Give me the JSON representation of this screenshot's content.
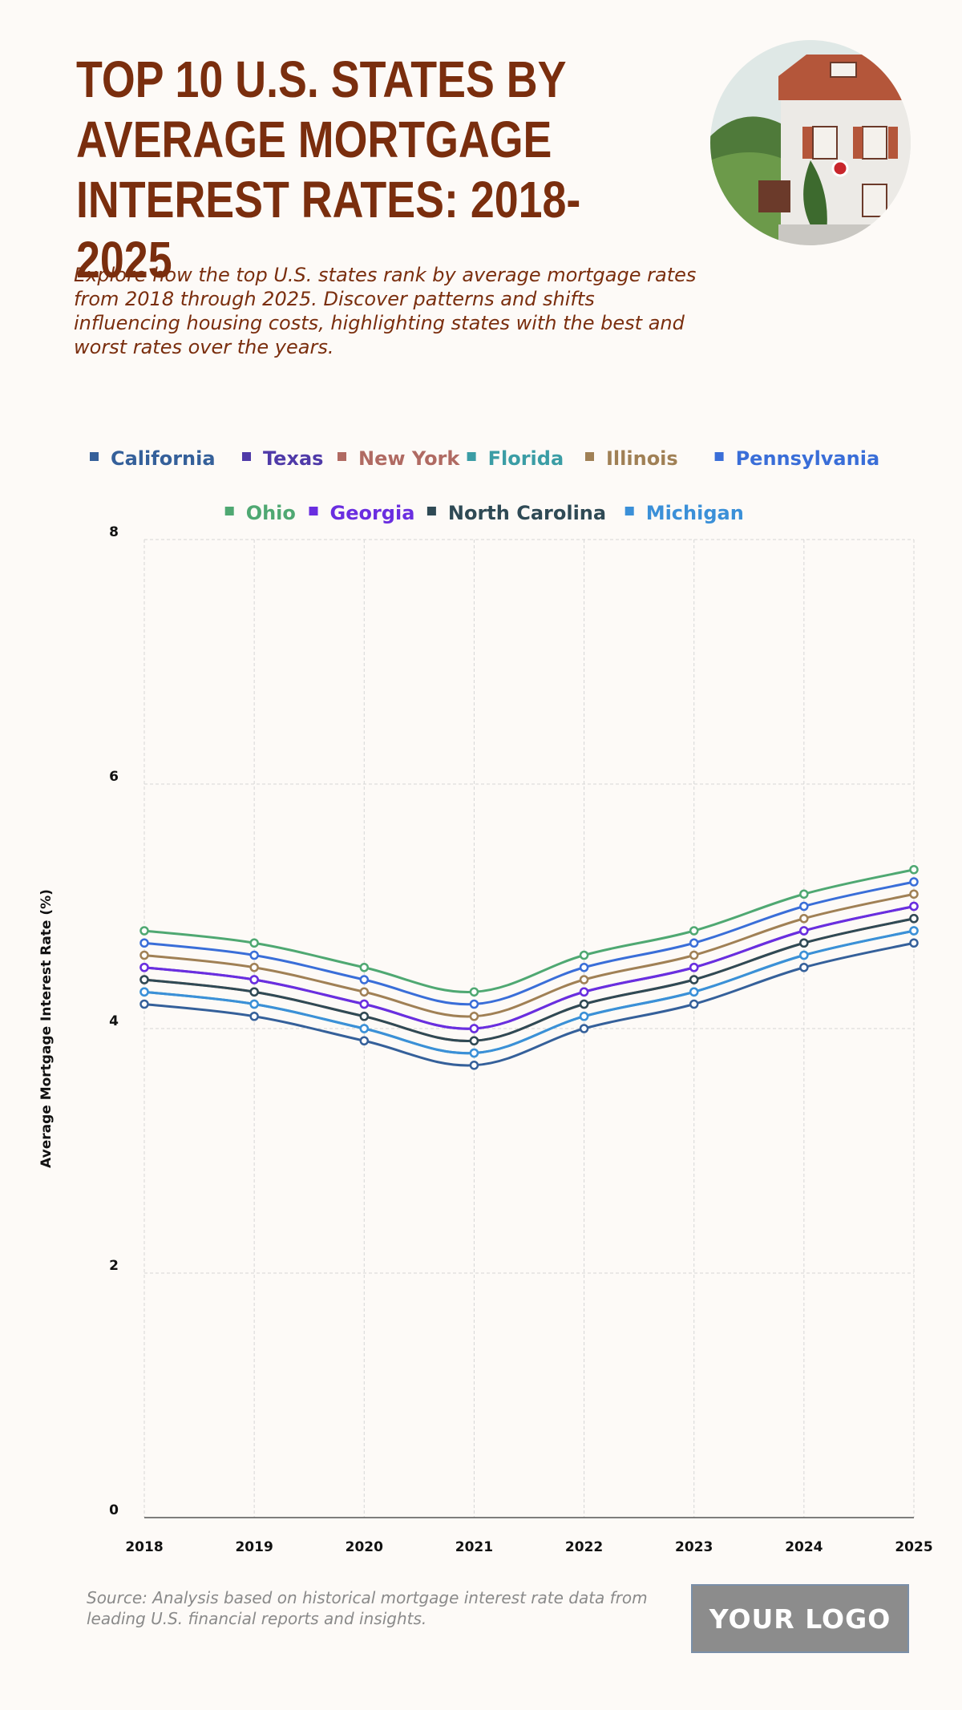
{
  "header": {
    "title": "TOP 10 U.S. STATES BY AVERAGE MORTGAGE INTEREST RATES: 2018-2025",
    "subtitle": "Explore how the top U.S. states rank by average mortgage rates from 2018 through 2025. Discover patterns and shifts influencing housing costs, highlighting states with the best and worst rates over the years."
  },
  "footer": {
    "source": "Source: Analysis based on historical mortgage interest rate data from leading U.S. financial reports and insights.",
    "logo_text": "YOUR LOGO"
  },
  "chart_data": {
    "type": "line",
    "title": "",
    "xlabel": "",
    "ylabel": "Average Mortgage Interest Rate (%)",
    "x": [
      "2018",
      "2019",
      "2020",
      "2021",
      "2022",
      "2023",
      "2024",
      "2025"
    ],
    "ylim": [
      0,
      8
    ],
    "yticks": [
      0,
      2,
      4,
      6,
      8
    ],
    "grid": true,
    "legend_position": "top",
    "series": [
      {
        "name": "California",
        "color": "#35609a",
        "values": [
          4.2,
          4.1,
          3.9,
          3.7,
          4.0,
          4.2,
          4.5,
          4.7
        ]
      },
      {
        "name": "Texas",
        "color": "#4f3aa8",
        "values": [
          4.5,
          4.4,
          4.2,
          4.0,
          4.3,
          4.5,
          4.8,
          5.0
        ]
      },
      {
        "name": "New York",
        "color": "#b06a62",
        "values": [
          4.4,
          4.3,
          4.1,
          3.9,
          4.2,
          4.4,
          4.7,
          4.9
        ]
      },
      {
        "name": "Florida",
        "color": "#3b9da5",
        "values": [
          4.3,
          4.2,
          4.0,
          3.8,
          4.1,
          4.3,
          4.6,
          4.8
        ]
      },
      {
        "name": "Illinois",
        "color": "#a08055",
        "values": [
          4.6,
          4.5,
          4.3,
          4.1,
          4.4,
          4.6,
          4.9,
          5.1
        ]
      },
      {
        "name": "Pennsylvania",
        "color": "#3a6ed8",
        "values": [
          4.7,
          4.6,
          4.4,
          4.2,
          4.5,
          4.7,
          5.0,
          5.2
        ]
      },
      {
        "name": "Ohio",
        "color": "#4fa872",
        "values": [
          4.8,
          4.7,
          4.5,
          4.3,
          4.6,
          4.8,
          5.1,
          5.3
        ]
      },
      {
        "name": "Georgia",
        "color": "#6a2ee0",
        "values": [
          4.5,
          4.4,
          4.2,
          4.0,
          4.3,
          4.5,
          4.8,
          5.0
        ]
      },
      {
        "name": "North Carolina",
        "color": "#2f4a55",
        "values": [
          4.4,
          4.3,
          4.1,
          3.9,
          4.2,
          4.4,
          4.7,
          4.9
        ]
      },
      {
        "name": "Michigan",
        "color": "#3b90d8",
        "values": [
          4.3,
          4.2,
          4.0,
          3.8,
          4.1,
          4.3,
          4.6,
          4.8
        ]
      }
    ]
  }
}
